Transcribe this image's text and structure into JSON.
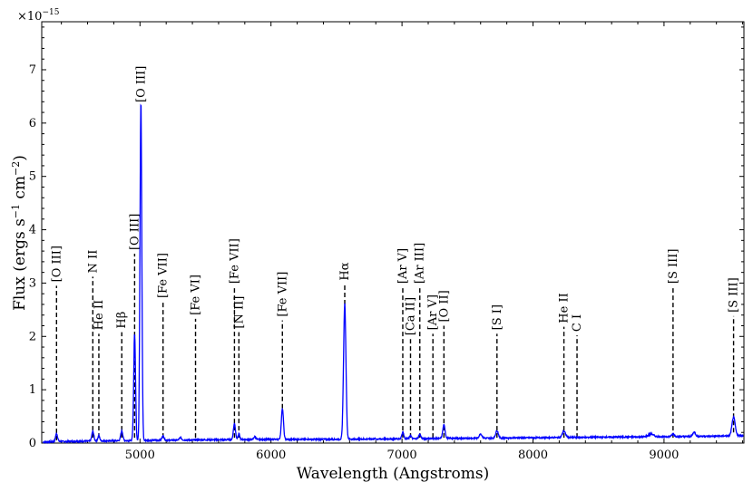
{
  "chart_data": {
    "type": "line",
    "xlabel": "Wavelength (Angstroms)",
    "ylabel": "Flux (ergs s",
    "ylabel_sup1": "−1",
    "ylabel_mid": " cm",
    "ylabel_sup2": "−2",
    "ylabel_end": ")",
    "yscale_prefix": "×10",
    "yscale_exp": "−15",
    "xlim": [
      4250,
      9610
    ],
    "ylim": [
      0,
      7.9
    ],
    "xticks": [
      5000,
      6000,
      7000,
      8000,
      9000
    ],
    "xtick_labels": [
      "5000",
      "6000",
      "7000",
      "8000",
      "9000"
    ],
    "yticks": [
      0,
      1,
      2,
      3,
      4,
      5,
      6,
      7
    ],
    "ytick_labels": [
      "0",
      "1",
      "2",
      "3",
      "4",
      "5",
      "6",
      "7"
    ],
    "series_color": "#0000ff",
    "continuum": [
      [
        4260,
        0.02
      ],
      [
        4400,
        0.03
      ],
      [
        4700,
        0.04
      ],
      [
        5000,
        0.05
      ],
      [
        5500,
        0.06
      ],
      [
        6000,
        0.07
      ],
      [
        6500,
        0.07
      ],
      [
        7000,
        0.08
      ],
      [
        7500,
        0.09
      ],
      [
        8000,
        0.1
      ],
      [
        8500,
        0.11
      ],
      [
        9000,
        0.12
      ],
      [
        9400,
        0.13
      ],
      [
        9610,
        0.14
      ]
    ],
    "peaks": [
      {
        "x": 4363,
        "h": 0.15,
        "w": 8
      },
      {
        "x": 4640,
        "h": 0.18,
        "w": 8
      },
      {
        "x": 4686,
        "h": 0.1,
        "w": 7
      },
      {
        "x": 4861,
        "h": 0.18,
        "w": 8
      },
      {
        "x": 4959,
        "h": 2.0,
        "w": 7
      },
      {
        "x": 5007,
        "h": 6.35,
        "w": 7
      },
      {
        "x": 5176,
        "h": 0.08,
        "w": 8
      },
      {
        "x": 5309,
        "h": 0.05,
        "w": 8
      },
      {
        "x": 5721,
        "h": 0.3,
        "w": 8
      },
      {
        "x": 5755,
        "h": 0.1,
        "w": 7
      },
      {
        "x": 5876,
        "h": 0.05,
        "w": 8
      },
      {
        "x": 6087,
        "h": 0.58,
        "w": 8
      },
      {
        "x": 6563,
        "h": 2.55,
        "w": 9
      },
      {
        "x": 7006,
        "h": 0.12,
        "w": 8
      },
      {
        "x": 7065,
        "h": 0.06,
        "w": 7
      },
      {
        "x": 7136,
        "h": 0.08,
        "w": 8
      },
      {
        "x": 7320,
        "h": 0.25,
        "w": 9
      },
      {
        "x": 7600,
        "h": 0.08,
        "w": 10
      },
      {
        "x": 7725,
        "h": 0.14,
        "w": 10
      },
      {
        "x": 8236,
        "h": 0.12,
        "w": 12
      },
      {
        "x": 8900,
        "h": 0.05,
        "w": 20
      },
      {
        "x": 9069,
        "h": 0.05,
        "w": 10
      },
      {
        "x": 9230,
        "h": 0.08,
        "w": 10
      },
      {
        "x": 9531,
        "h": 0.35,
        "w": 12
      }
    ],
    "annotations": [
      {
        "text": "[O III]",
        "x": 4363,
        "y0": 0.05,
        "y1": 2.95
      },
      {
        "text": "N II",
        "x": 4640,
        "y0": 0.1,
        "y1": 3.12
      },
      {
        "text": "He II",
        "x": 4686,
        "y0": 0.1,
        "y1": 2.05
      },
      {
        "text": "Hβ",
        "x": 4861,
        "y0": 0.1,
        "y1": 2.08
      },
      {
        "text": "[O III]",
        "x": 4959,
        "y0": 0.1,
        "y1": 3.55
      },
      {
        "text": "[O III]",
        "x": 5007,
        "y0": 6.3,
        "y1": 6.32
      },
      {
        "text": "[Fe VII]",
        "x": 5176,
        "y0": 0.1,
        "y1": 2.65
      },
      {
        "text": "[Fe VI]",
        "x": 5424,
        "y0": 0.1,
        "y1": 2.33
      },
      {
        "text": "[Fe VII]",
        "x": 5721,
        "y0": 0.1,
        "y1": 2.92
      },
      {
        "text": "[N II]",
        "x": 5755,
        "y0": 0.1,
        "y1": 2.08
      },
      {
        "text": "[Fe VII]",
        "x": 6087,
        "y0": 0.65,
        "y1": 2.3
      },
      {
        "text": "Hα",
        "x": 6563,
        "y0": 2.6,
        "y1": 2.98
      },
      {
        "text": "[Ar V]",
        "x": 7006,
        "y0": 0.1,
        "y1": 2.92
      },
      {
        "text": "[Ca II]",
        "x": 7065,
        "y0": 0.1,
        "y1": 1.95
      },
      {
        "text": "[Ar III]",
        "x": 7136,
        "y0": 0.1,
        "y1": 2.92
      },
      {
        "text": "[Ar V]",
        "x": 7236,
        "y0": 0.1,
        "y1": 2.05
      },
      {
        "text": "[O II]",
        "x": 7320,
        "y0": 0.1,
        "y1": 2.2
      },
      {
        "text": "[S I]",
        "x": 7725,
        "y0": 0.1,
        "y1": 2.05
      },
      {
        "text": "He II",
        "x": 8236,
        "y0": 0.1,
        "y1": 2.18
      },
      {
        "text": "C I",
        "x": 8336,
        "y0": 0.1,
        "y1": 2.02
      },
      {
        "text": "[S III]",
        "x": 9069,
        "y0": 0.1,
        "y1": 2.92
      },
      {
        "text": "[S III]",
        "x": 9531,
        "y0": 0.2,
        "y1": 2.38
      }
    ]
  }
}
